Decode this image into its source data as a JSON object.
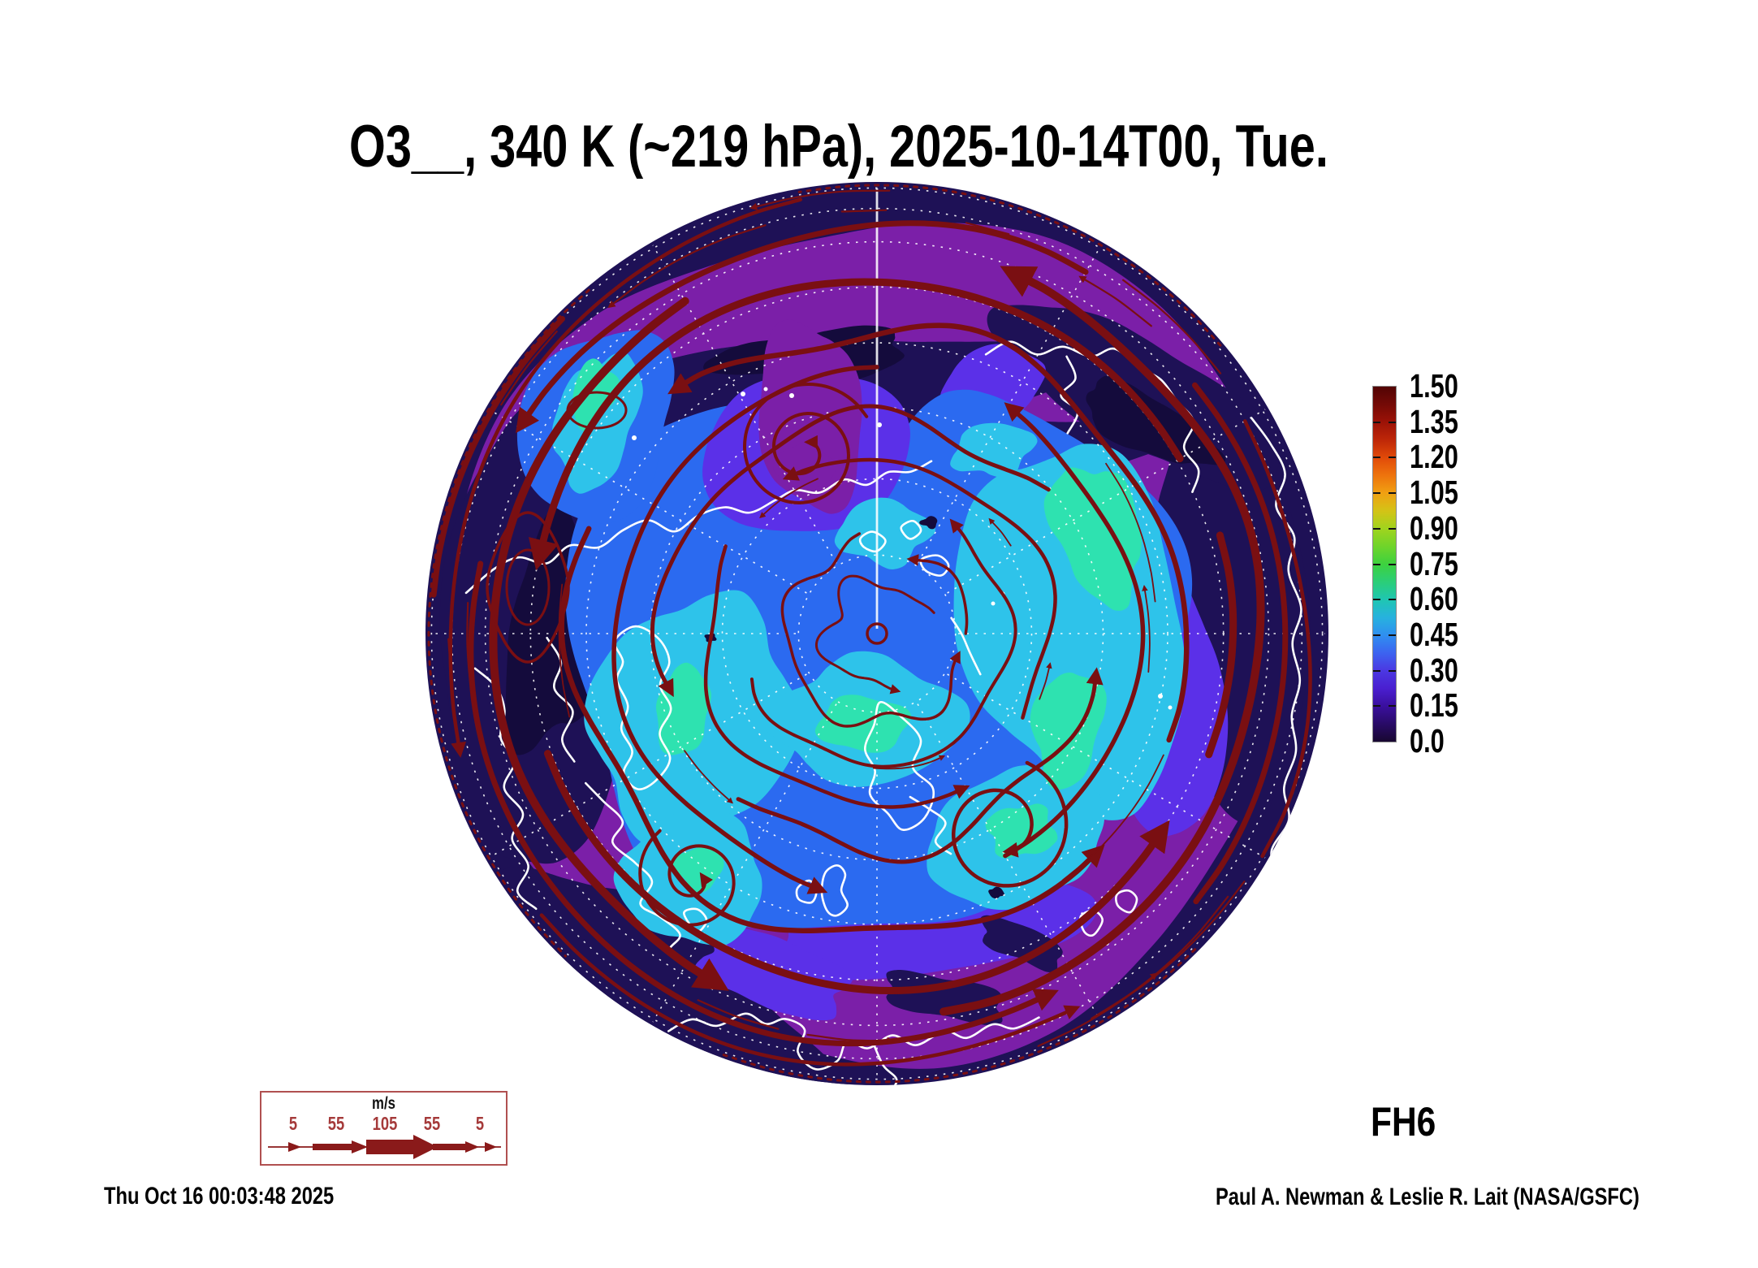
{
  "title": "O3__, 340 K (~219 hPa), 2025-10-14T00, Tue.",
  "forecast_hour_label": "FH6",
  "footer": {
    "timestamp": "Thu Oct 16 00:03:48 2025",
    "credit": "Paul A. Newman & Leslie R. Lait (NASA/GSFC)"
  },
  "colorbar": {
    "tick_labels": [
      "1.50",
      "1.35",
      "1.20",
      "1.05",
      "0.90",
      "0.75",
      "0.60",
      "0.45",
      "0.30",
      "0.15",
      "0.0"
    ],
    "border_color": "#8a8a8a",
    "gradient_stops": [
      [
        0.0,
        "#180730"
      ],
      [
        0.1,
        "#3A0F9E"
      ],
      [
        0.15,
        "#4A1FD0"
      ],
      [
        0.2,
        "#4B38E2"
      ],
      [
        0.25,
        "#3C64F0"
      ],
      [
        0.3,
        "#2F8FF0"
      ],
      [
        0.35,
        "#27B2DE"
      ],
      [
        0.4,
        "#1FC6B2"
      ],
      [
        0.45,
        "#2BCE78"
      ],
      [
        0.5,
        "#3DD23F"
      ],
      [
        0.55,
        "#6FD42A"
      ],
      [
        0.6,
        "#A0D41E"
      ],
      [
        0.65,
        "#D4C316"
      ],
      [
        0.7,
        "#F0A012"
      ],
      [
        0.75,
        "#EE740D"
      ],
      [
        0.8,
        "#E14A09"
      ],
      [
        0.85,
        "#BE2708"
      ],
      [
        0.9,
        "#9C1207"
      ],
      [
        0.95,
        "#740A06"
      ],
      [
        1.0,
        "#520404"
      ]
    ]
  },
  "wind_legend": {
    "units": "m/s",
    "speeds": [
      "5",
      "55",
      "105",
      "55",
      "5"
    ],
    "text_color": "#A53A3A",
    "arrow_color": "#8A1A1A",
    "border_color": "#B05050"
  },
  "map": {
    "palette": {
      "navy": "#1E1156",
      "navy_dark": "#140B3C",
      "purple": "#7B1FA8",
      "violet": "#5B30E8",
      "blue": "#2B6AF0",
      "cyan": "#2EC3EA",
      "mint": "#2EE2B0",
      "streamline": "#7A0F12",
      "coastline": "#FFFFFF",
      "graticule": "#FFFFFF"
    }
  },
  "chart_data": {
    "type": "heatmap",
    "title": "O3__, 340 K (~219 hPa), 2025-10-14T00, Tue.",
    "variable": "O3__",
    "level": "340 K (~219 hPa)",
    "valid_time": "2025-10-14T00",
    "valid_day": "Tue.",
    "forecast_hour": "FH6",
    "projection": "Northern Hemisphere polar orthographic globe",
    "colorbar_levels": [
      0.0,
      0.15,
      0.3,
      0.45,
      0.6,
      0.75,
      0.9,
      1.05,
      1.2,
      1.35,
      1.5
    ],
    "colorbar_range": [
      0.0,
      1.5
    ],
    "wind_scale_mps": [
      5,
      55,
      105,
      55,
      5
    ],
    "wind_scale_units": "m/s",
    "overlays": [
      "wind streamlines with arrowheads",
      "white coastlines",
      "dashed lat-lon graticule"
    ],
    "generated": "Thu Oct 16 00:03:48 2025",
    "credit": "Paul A. Newman & Leslie R. Lait (NASA/GSFC)"
  }
}
